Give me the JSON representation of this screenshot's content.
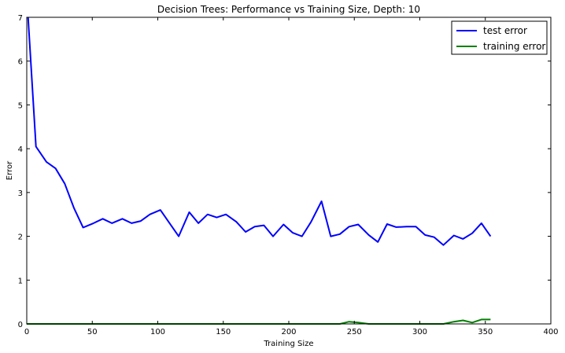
{
  "chart_data": {
    "type": "line",
    "title": "Decision Trees: Performance vs Training Size, Depth: 10",
    "xlabel": "Training Size",
    "ylabel": "Error",
    "xlim": [
      0,
      400
    ],
    "ylim": [
      0,
      7
    ],
    "xticks": [
      0,
      50,
      100,
      150,
      200,
      250,
      300,
      350,
      400
    ],
    "yticks": [
      0,
      1,
      2,
      3,
      4,
      5,
      6,
      7
    ],
    "grid": false,
    "legend_position": "top-right",
    "series": [
      {
        "name": "test error",
        "color": "#0000ff",
        "x": [
          1,
          7,
          15,
          22,
          29,
          36,
          43,
          51,
          58,
          65,
          73,
          80,
          87,
          94,
          102,
          109,
          116,
          124,
          131,
          138,
          145,
          152,
          160,
          167,
          174,
          181,
          188,
          196,
          203,
          210,
          217,
          225,
          232,
          239,
          246,
          253,
          261,
          268,
          275,
          282,
          290,
          297,
          304,
          311,
          318,
          326,
          333,
          340,
          347,
          354
        ],
        "values": [
          7.0,
          4.05,
          3.7,
          3.55,
          3.2,
          2.65,
          2.2,
          2.3,
          2.4,
          2.3,
          2.4,
          2.3,
          2.35,
          2.5,
          2.6,
          2.3,
          2.0,
          2.55,
          2.3,
          2.5,
          2.43,
          2.5,
          2.33,
          2.1,
          2.22,
          2.25,
          2.0,
          2.27,
          2.08,
          2.0,
          2.33,
          2.8,
          2.0,
          2.05,
          2.22,
          2.27,
          2.03,
          1.87,
          2.28,
          2.21,
          2.22,
          2.22,
          2.03,
          1.98,
          1.8,
          2.02,
          1.94,
          2.07,
          2.3,
          2.0
        ]
      },
      {
        "name": "training error",
        "color": "#008000",
        "x": [
          0,
          50,
          100,
          150,
          200,
          239,
          246,
          253,
          261,
          268,
          300,
          318,
          326,
          333,
          340,
          347,
          354
        ],
        "values": [
          0,
          0,
          0,
          0,
          0,
          0,
          0.05,
          0.03,
          0,
          0,
          0,
          0,
          0.05,
          0.08,
          0.03,
          0.1,
          0.1
        ]
      }
    ]
  }
}
